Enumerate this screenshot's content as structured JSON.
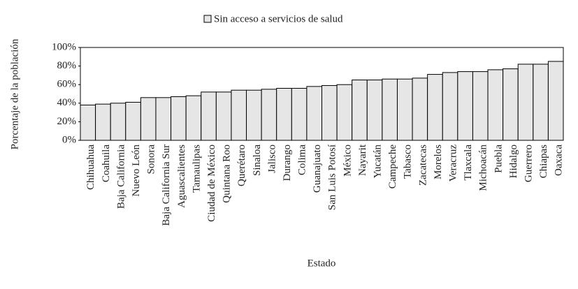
{
  "chart_data": {
    "type": "bar",
    "x_label": "Estado",
    "y_label": "Porcentaje de la población",
    "categories": [
      "Chihuahua",
      "Coahuila",
      "Baja California",
      "Nuevo León",
      "Sonora",
      "Baja California Sur",
      "Aguascalientes",
      "Tamaulipas",
      "Ciudad de México",
      "Quintana Roo",
      "Querétaro",
      "Sinaloa",
      "Jalisco",
      "Durango",
      "Colima",
      "Guanajuato",
      "San Luis Potosí",
      "México",
      "Nayarit",
      "Yucatán",
      "Campeche",
      "Tabasco",
      "Zacatecas",
      "Morelos",
      "Veracruz",
      "Tlaxcala",
      "Michoacán",
      "Puebla",
      "Hidalgo",
      "Guerrero",
      "Chiapas",
      "Oaxaca"
    ],
    "series": [
      {
        "name": "Sin acceso a servicios de salud",
        "color": "#e6e6e6",
        "values": [
          38,
          39,
          40,
          41,
          46,
          46,
          47,
          48,
          52,
          52,
          54,
          54,
          55,
          56,
          56,
          58,
          59,
          60,
          65,
          65,
          66,
          66,
          67,
          71,
          73,
          74,
          74,
          76,
          77,
          82,
          82,
          85
        ]
      }
    ],
    "ylim": [
      0,
      100
    ],
    "yticks": [
      {
        "value": 0,
        "label": "0%"
      },
      {
        "value": 20,
        "label": "20%"
      },
      {
        "value": 40,
        "label": "40%"
      },
      {
        "value": 60,
        "label": "60%"
      },
      {
        "value": 80,
        "label": "80%"
      },
      {
        "value": 100,
        "label": "100%"
      }
    ],
    "grid": false,
    "legend": "top"
  }
}
